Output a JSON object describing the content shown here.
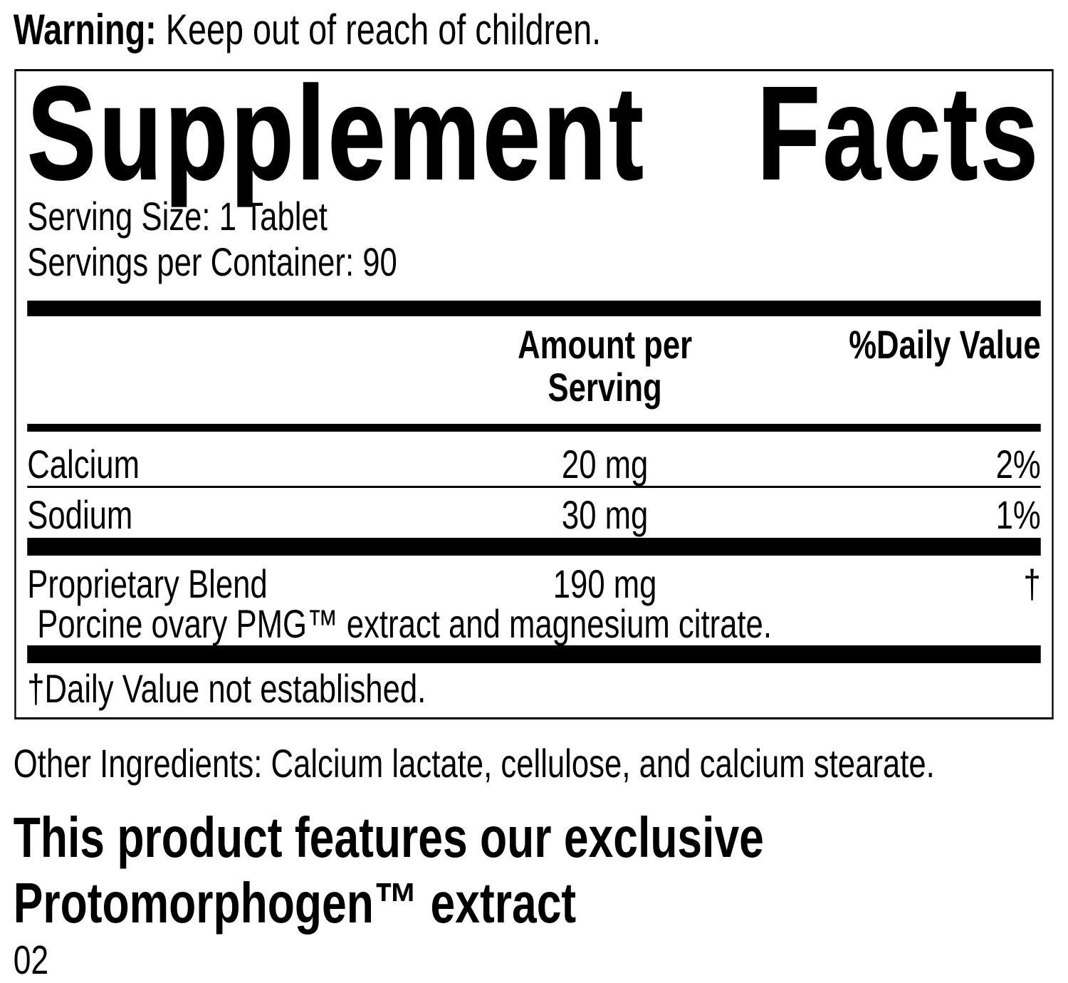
{
  "warning": {
    "label": "Warning:",
    "text": " Keep out of reach of children."
  },
  "panel": {
    "title": {
      "word1": "Supplement",
      "word2": "Facts"
    },
    "serving_size": "Serving Size: 1 Tablet",
    "servings_per_container": "Servings per Container: 90",
    "header": {
      "amount": "Amount per Serving",
      "daily_value": "%Daily Value"
    },
    "rows": [
      {
        "name": "Calcium",
        "amount": "20 mg",
        "daily_value": "2%"
      },
      {
        "name": "Sodium",
        "amount": "30 mg",
        "daily_value": "1%"
      }
    ],
    "proprietary": {
      "name": "Proprietary Blend",
      "amount": "190 mg",
      "daily_value": "†",
      "description": "Porcine ovary PMG™ extract and magnesium citrate."
    },
    "footnote": "†Daily Value not established."
  },
  "other_ingredients": "Other Ingredients: Calcium lactate, cellulose, and calcium stearate.",
  "feature": {
    "line1": "This product features our exclusive",
    "line2": "Protomorphogen™ extract"
  },
  "page_number": "02",
  "colors": {
    "ink": "#000000",
    "background": "#ffffff"
  }
}
